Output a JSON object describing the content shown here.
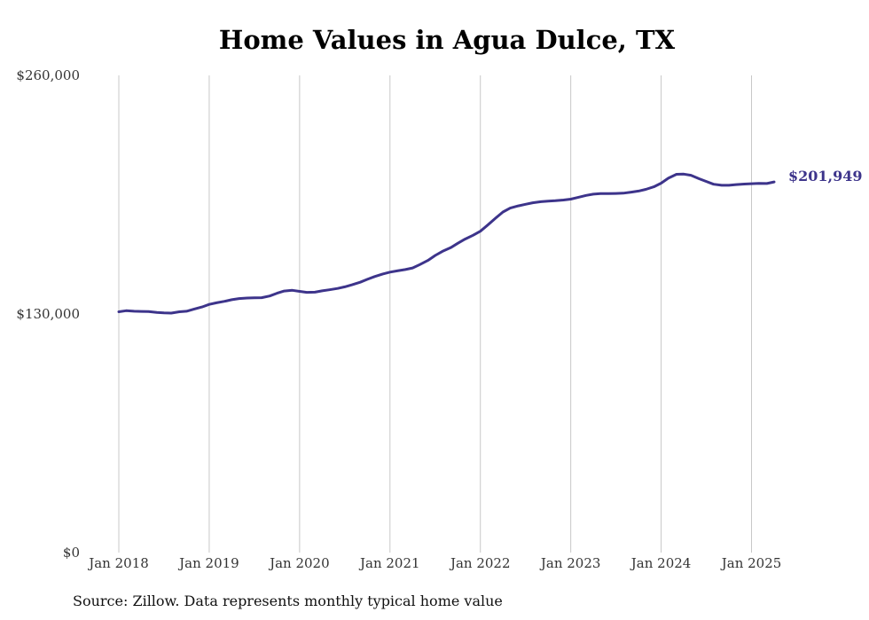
{
  "chart_data": {
    "type": "line",
    "title": "Home Values in Agua Dulce, TX",
    "xlabel": "",
    "ylabel": "",
    "ylim": [
      0,
      260000
    ],
    "y_ticks": [
      {
        "value": 0,
        "label": "$0"
      },
      {
        "value": 130000,
        "label": "$130,000"
      },
      {
        "value": 260000,
        "label": "$260,000"
      }
    ],
    "x_ticks": [
      {
        "value": 2018.0,
        "label": "Jan 2018"
      },
      {
        "value": 2019.0,
        "label": "Jan 2019"
      },
      {
        "value": 2020.0,
        "label": "Jan 2020"
      },
      {
        "value": 2021.0,
        "label": "Jan 2021"
      },
      {
        "value": 2022.0,
        "label": "Jan 2022"
      },
      {
        "value": 2023.0,
        "label": "Jan 2023"
      },
      {
        "value": 2024.0,
        "label": "Jan 2024"
      },
      {
        "value": 2025.0,
        "label": "Jan 2025"
      }
    ],
    "xlim": [
      2018.0,
      2025.25
    ],
    "grid": "vertical",
    "series": [
      {
        "color": "#3d348b",
        "end_label": "$201,949",
        "x": [
          2018.0,
          2018.08,
          2018.17,
          2018.25,
          2018.33,
          2018.42,
          2018.5,
          2018.58,
          2018.67,
          2018.75,
          2018.83,
          2018.92,
          2019.0,
          2019.08,
          2019.17,
          2019.25,
          2019.33,
          2019.42,
          2019.5,
          2019.58,
          2019.67,
          2019.75,
          2019.83,
          2019.92,
          2020.0,
          2020.08,
          2020.17,
          2020.25,
          2020.33,
          2020.42,
          2020.5,
          2020.58,
          2020.67,
          2020.75,
          2020.83,
          2020.92,
          2021.0,
          2021.08,
          2021.17,
          2021.25,
          2021.33,
          2021.42,
          2021.5,
          2021.58,
          2021.67,
          2021.75,
          2021.83,
          2021.92,
          2022.0,
          2022.08,
          2022.17,
          2022.25,
          2022.33,
          2022.42,
          2022.5,
          2022.58,
          2022.67,
          2022.75,
          2022.83,
          2022.92,
          2023.0,
          2023.08,
          2023.17,
          2023.25,
          2023.33,
          2023.42,
          2023.5,
          2023.58,
          2023.67,
          2023.75,
          2023.83,
          2023.92,
          2024.0,
          2024.08,
          2024.17,
          2024.25,
          2024.33,
          2024.42,
          2024.5,
          2024.58,
          2024.67,
          2024.75,
          2024.83,
          2024.92,
          2025.0,
          2025.08,
          2025.17,
          2025.25
        ],
        "y": [
          131200,
          131800,
          131500,
          131400,
          131300,
          130800,
          130600,
          130500,
          131200,
          131500,
          132600,
          133800,
          135200,
          136100,
          136900,
          137800,
          138400,
          138700,
          138800,
          138900,
          139800,
          141300,
          142500,
          142900,
          142300,
          141800,
          141900,
          142600,
          143200,
          143900,
          144800,
          145900,
          147300,
          148900,
          150400,
          151800,
          152800,
          153500,
          154200,
          155100,
          156900,
          159200,
          161900,
          164100,
          166100,
          168500,
          170800,
          172900,
          175100,
          178400,
          182300,
          185600,
          187700,
          188900,
          189800,
          190600,
          191200,
          191500,
          191700,
          192100,
          192600,
          193500,
          194600,
          195300,
          195600,
          195600,
          195700,
          195800,
          196400,
          197000,
          197900,
          199300,
          201300,
          204000,
          206100,
          206200,
          205600,
          203700,
          202200,
          200700,
          200100,
          200100,
          200500,
          200800,
          201000,
          201200,
          201100,
          201949
        ]
      }
    ]
  },
  "source_note": "Source: Zillow. Data represents monthly typical home value"
}
